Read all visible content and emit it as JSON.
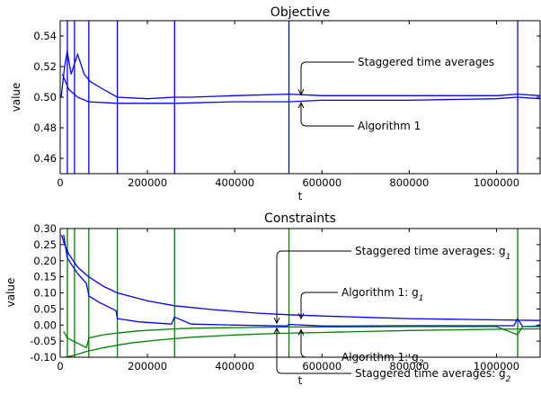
{
  "chart_data": [
    {
      "type": "line",
      "title": "Objective",
      "xlabel": "t",
      "ylabel": "value",
      "xlim": [
        0,
        1100000
      ],
      "ylim": [
        0.45,
        0.55
      ],
      "xticks": [
        0,
        200000,
        400000,
        600000,
        800000,
        1000000
      ],
      "xtick_labels": [
        "0",
        "200000",
        "400000",
        "600000",
        "800000",
        "1000000"
      ],
      "yticks": [
        0.46,
        0.48,
        0.5,
        0.52,
        0.54
      ],
      "ytick_labels": [
        "0.46",
        "0.48",
        "0.50",
        "0.52",
        "0.54"
      ],
      "grid": false,
      "series_color": "#0000ff",
      "restart_lines_x": [
        16384,
        32768,
        65536,
        131072,
        262144,
        524288,
        1048576
      ],
      "series": [
        {
          "x": [
            2000,
            10000,
            16000,
            25000,
            40000,
            55000,
            70000,
            100000,
            131000,
            200000,
            262000,
            300000,
            400000,
            524000,
            600000,
            700000,
            800000,
            1000000,
            1048000,
            1100000
          ],
          "y": [
            0.5,
            0.52,
            0.53,
            0.515,
            0.528,
            0.515,
            0.51,
            0.505,
            0.5,
            0.499,
            0.5,
            0.5,
            0.501,
            0.502,
            0.501,
            0.501,
            0.501,
            0.501,
            0.502,
            0.501
          ]
        },
        {
          "x": [
            5000,
            20000,
            40000,
            65000,
            131000,
            200000,
            262000,
            400000,
            524000,
            600000,
            800000,
            1000000,
            1048000,
            1100000
          ],
          "y": [
            0.515,
            0.505,
            0.5,
            0.497,
            0.496,
            0.496,
            0.496,
            0.497,
            0.497,
            0.498,
            0.498,
            0.499,
            0.5,
            0.499
          ]
        }
      ],
      "annotations": [
        {
          "text": "Staggered time averages",
          "x": 552000,
          "y": 0.501
        },
        {
          "text": "Algorithm 1",
          "x": 552000,
          "y": 0.497
        }
      ]
    },
    {
      "type": "line",
      "title": "Constraints",
      "xlabel": "t",
      "ylabel": "value",
      "xlim": [
        0,
        1100000
      ],
      "ylim": [
        -0.1,
        0.3
      ],
      "xticks": [
        0,
        200000,
        400000,
        600000,
        800000,
        1000000
      ],
      "xtick_labels": [
        "0",
        "200000",
        "400000",
        "600000",
        "800000",
        "1000000"
      ],
      "yticks": [
        -0.1,
        -0.05,
        0.0,
        0.05,
        0.1,
        0.15,
        0.2,
        0.25,
        0.3
      ],
      "ytick_labels": [
        "-0.10",
        "-0.05",
        "0.00",
        "0.05",
        "0.10",
        "0.15",
        "0.20",
        "0.25",
        "0.30"
      ],
      "grid": false,
      "green_restart_lines_x": [
        16384,
        32768,
        65536,
        131072,
        262144,
        524288,
        1048576
      ],
      "series": [
        {
          "color": "#0000ff",
          "x": [
            3000,
            10000,
            20000,
            40000,
            65000,
            100000,
            131000,
            200000,
            262000,
            350000,
            450000,
            524000,
            600000,
            700000,
            800000,
            900000,
            1000000,
            1100000
          ],
          "y": [
            0.28,
            0.25,
            0.22,
            0.18,
            0.15,
            0.12,
            0.1,
            0.075,
            0.06,
            0.048,
            0.037,
            0.032,
            0.028,
            0.024,
            0.02,
            0.018,
            0.016,
            0.014
          ]
        },
        {
          "color": "#0000ff",
          "x": [
            8000,
            16000,
            25000,
            40000,
            60000,
            66000,
            90000,
            128000,
            131000,
            180000,
            255000,
            262000,
            300000,
            400000,
            520000,
            524000,
            600000,
            800000,
            1040000,
            1048000,
            1060000,
            1100000
          ],
          "y": [
            0.28,
            0.21,
            0.19,
            0.16,
            0.13,
            0.09,
            0.07,
            0.045,
            0.02,
            0.01,
            0.003,
            0.025,
            0.003,
            0.0,
            -0.003,
            0.002,
            -0.003,
            -0.002,
            -0.002,
            0.02,
            -0.005,
            -0.003
          ]
        },
        {
          "color": "#008000",
          "x": [
            10000,
            30000,
            60000,
            100000,
            160000,
            220000,
            300000,
            400000,
            500000,
            600000,
            700000,
            800000,
            900000,
            1000000,
            1100000
          ],
          "y": [
            -0.1,
            -0.095,
            -0.082,
            -0.07,
            -0.056,
            -0.047,
            -0.038,
            -0.031,
            -0.026,
            -0.023,
            -0.02,
            -0.017,
            -0.015,
            -0.013,
            -0.012
          ]
        },
        {
          "color": "#008000",
          "x": [
            8000,
            16000,
            30000,
            60000,
            66000,
            100000,
            131000,
            180000,
            262000,
            300000,
            400000,
            524000,
            600000,
            800000,
            1000000,
            1048000,
            1060000,
            1100000
          ],
          "y": [
            -0.02,
            -0.04,
            -0.05,
            -0.07,
            -0.04,
            -0.03,
            -0.025,
            -0.018,
            -0.012,
            -0.01,
            -0.008,
            -0.006,
            -0.006,
            -0.005,
            -0.005,
            -0.03,
            -0.005,
            -0.005
          ]
        }
      ],
      "annotations": [
        {
          "text": "Staggered time averages: g",
          "sub": "1",
          "x": 490000,
          "y": 0.003
        },
        {
          "text": "Algorithm 1: g",
          "sub": "1",
          "x": 552000,
          "y": 0.017
        },
        {
          "text": "Algorithm 1: g",
          "sub": "2",
          "x": 552000,
          "y": -0.012
        },
        {
          "text": "Staggered time averages: g",
          "sub": "2",
          "x": 490000,
          "y": -0.007
        }
      ]
    }
  ]
}
